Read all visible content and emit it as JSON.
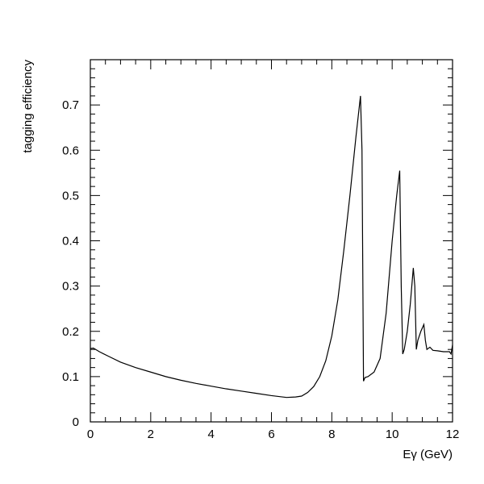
{
  "chart_data": {
    "type": "line",
    "title": "",
    "xlabel": "Eγ (GeV)",
    "ylabel": "tagging efficiency",
    "xlim": [
      0,
      12
    ],
    "ylim": [
      0,
      0.8
    ],
    "x_ticks": [
      0,
      2,
      4,
      6,
      8,
      10,
      12
    ],
    "x_tick_labels": [
      "0",
      "2",
      "4",
      "6",
      "8",
      "10",
      "12"
    ],
    "y_ticks": [
      0,
      0.1,
      0.2,
      0.3,
      0.4,
      0.5,
      0.6,
      0.7
    ],
    "y_tick_labels": [
      "0",
      "0.1",
      "0.2",
      "0.3",
      "0.4",
      "0.5",
      "0.6",
      "0.7"
    ],
    "grid": false,
    "colors": {
      "line": "#000000",
      "frame": "#000000",
      "background": "#ffffff"
    },
    "series": [
      {
        "x": [
          0,
          0.1,
          0.3,
          0.6,
          1.0,
          1.5,
          2.0,
          2.5,
          3.0,
          3.5,
          4.0,
          4.5,
          5.0,
          5.5,
          6.0,
          6.5,
          6.8,
          7.0,
          7.2,
          7.4,
          7.6,
          7.8,
          8.0,
          8.2,
          8.4,
          8.6,
          8.8,
          8.95,
          9.0,
          9.05,
          9.1,
          9.2,
          9.4,
          9.6,
          9.8,
          10.0,
          10.15,
          10.25,
          10.3,
          10.35,
          10.4,
          10.5,
          10.6,
          10.7,
          10.75,
          10.8,
          10.85,
          10.95,
          11.05,
          11.1,
          11.15,
          11.25,
          11.35,
          11.5,
          11.7,
          11.9,
          11.95,
          12.0
        ],
        "y": [
          0.162,
          0.163,
          0.155,
          0.145,
          0.132,
          0.12,
          0.11,
          0.1,
          0.092,
          0.085,
          0.079,
          0.073,
          0.068,
          0.063,
          0.058,
          0.054,
          0.055,
          0.057,
          0.065,
          0.078,
          0.1,
          0.135,
          0.19,
          0.27,
          0.38,
          0.5,
          0.63,
          0.72,
          0.6,
          0.09,
          0.098,
          0.1,
          0.11,
          0.14,
          0.24,
          0.4,
          0.5,
          0.555,
          0.3,
          0.15,
          0.16,
          0.2,
          0.26,
          0.34,
          0.3,
          0.16,
          0.18,
          0.2,
          0.215,
          0.18,
          0.16,
          0.165,
          0.158,
          0.157,
          0.155,
          0.155,
          0.15,
          0.17
        ]
      }
    ]
  }
}
